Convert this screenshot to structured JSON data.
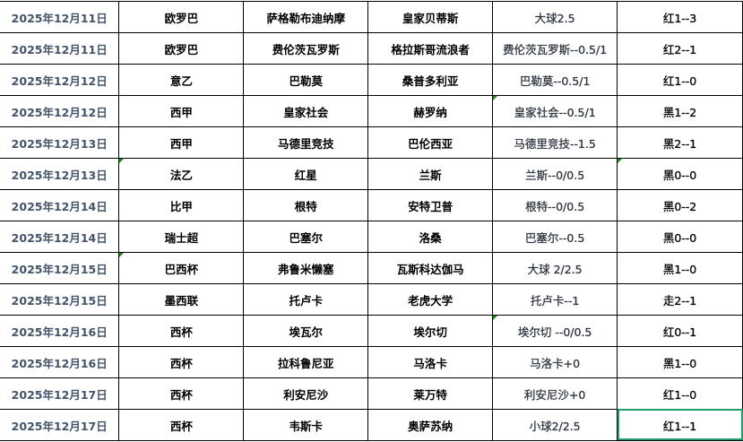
{
  "colors": {
    "date_text": "#44546a",
    "selection_border": "#1e9e6a",
    "comment_marker": "#1a8a1a"
  },
  "rows": [
    {
      "date": "2025年12月11日",
      "league": "欧罗巴",
      "home": "萨格勒布迪纳摩",
      "away": "皇家贝蒂斯",
      "handicap": "大球2.5",
      "result": "红1--3"
    },
    {
      "date": "2025年12月11日",
      "league": "欧罗巴",
      "home": "费伦茨瓦罗斯",
      "away": "格拉斯哥流浪者",
      "handicap": "费伦茨瓦罗斯--0.5/1",
      "result": "红2--1"
    },
    {
      "date": "2025年12月12日",
      "league": "意乙",
      "home": "巴勒莫",
      "away": "桑普多利亚",
      "handicap": "巴勒莫--0.5/1",
      "result": "红1--0"
    },
    {
      "date": "2025年12月12日",
      "league": "西甲",
      "home": "皇家社会",
      "away": "赫罗纳",
      "handicap": "皇家社会--0.5/1",
      "result": "黑1--2",
      "marker_handicap": true
    },
    {
      "date": "2025年12月13日",
      "league": "西甲",
      "home": "马德里竞技",
      "away": "巴伦西亚",
      "handicap": "马德里竞技--1.5",
      "result": "黑2--1"
    },
    {
      "date": "2025年12月13日",
      "league": "法乙",
      "home": "红星",
      "away": "兰斯",
      "handicap": "兰斯--0/0.5",
      "result": "黑0--0",
      "marker_league": true,
      "marker_result": true
    },
    {
      "date": "2025年12月14日",
      "league": "比甲",
      "home": "根特",
      "away": "安特卫普",
      "handicap": "根特--0/0.5",
      "result": "黑0--2"
    },
    {
      "date": "2025年12月14日",
      "league": "瑞士超",
      "home": "巴塞尔",
      "away": "洛桑",
      "handicap": "巴塞尔--0.5",
      "result": "黑0--0"
    },
    {
      "date": "2025年12月15日",
      "league": "巴西杯",
      "home": "弗鲁米懒塞",
      "away": "瓦斯科达伽马",
      "handicap": "大球   2/2.5",
      "result": "黑1--0",
      "marker_league": true
    },
    {
      "date": "2025年12月15日",
      "league": "墨西联",
      "home": "托卢卡",
      "away": "老虎大学",
      "handicap": "托卢卡--1",
      "result": "走2--1"
    },
    {
      "date": "2025年12月16日",
      "league": "西杯",
      "home": "埃瓦尔",
      "away": "埃尔切",
      "handicap": "埃尔切 --0/0.5",
      "result": "红0--1",
      "marker_handicap": true
    },
    {
      "date": "2025年12月16日",
      "league": "西杯",
      "home": "拉科鲁尼亚",
      "away": "马洛卡",
      "handicap": "马洛卡+0",
      "result": "黑1--0"
    },
    {
      "date": "2025年12月17日",
      "league": "西杯",
      "home": "利安尼沙",
      "away": "莱万特",
      "handicap": "利安尼沙+0",
      "result": "红1--0"
    },
    {
      "date": "2025年12月17日",
      "league": "西杯",
      "home": "韦斯卡",
      "away": "奥萨苏纳",
      "handicap": "小球2/2.5",
      "result": "红1--1",
      "selected": true
    }
  ]
}
